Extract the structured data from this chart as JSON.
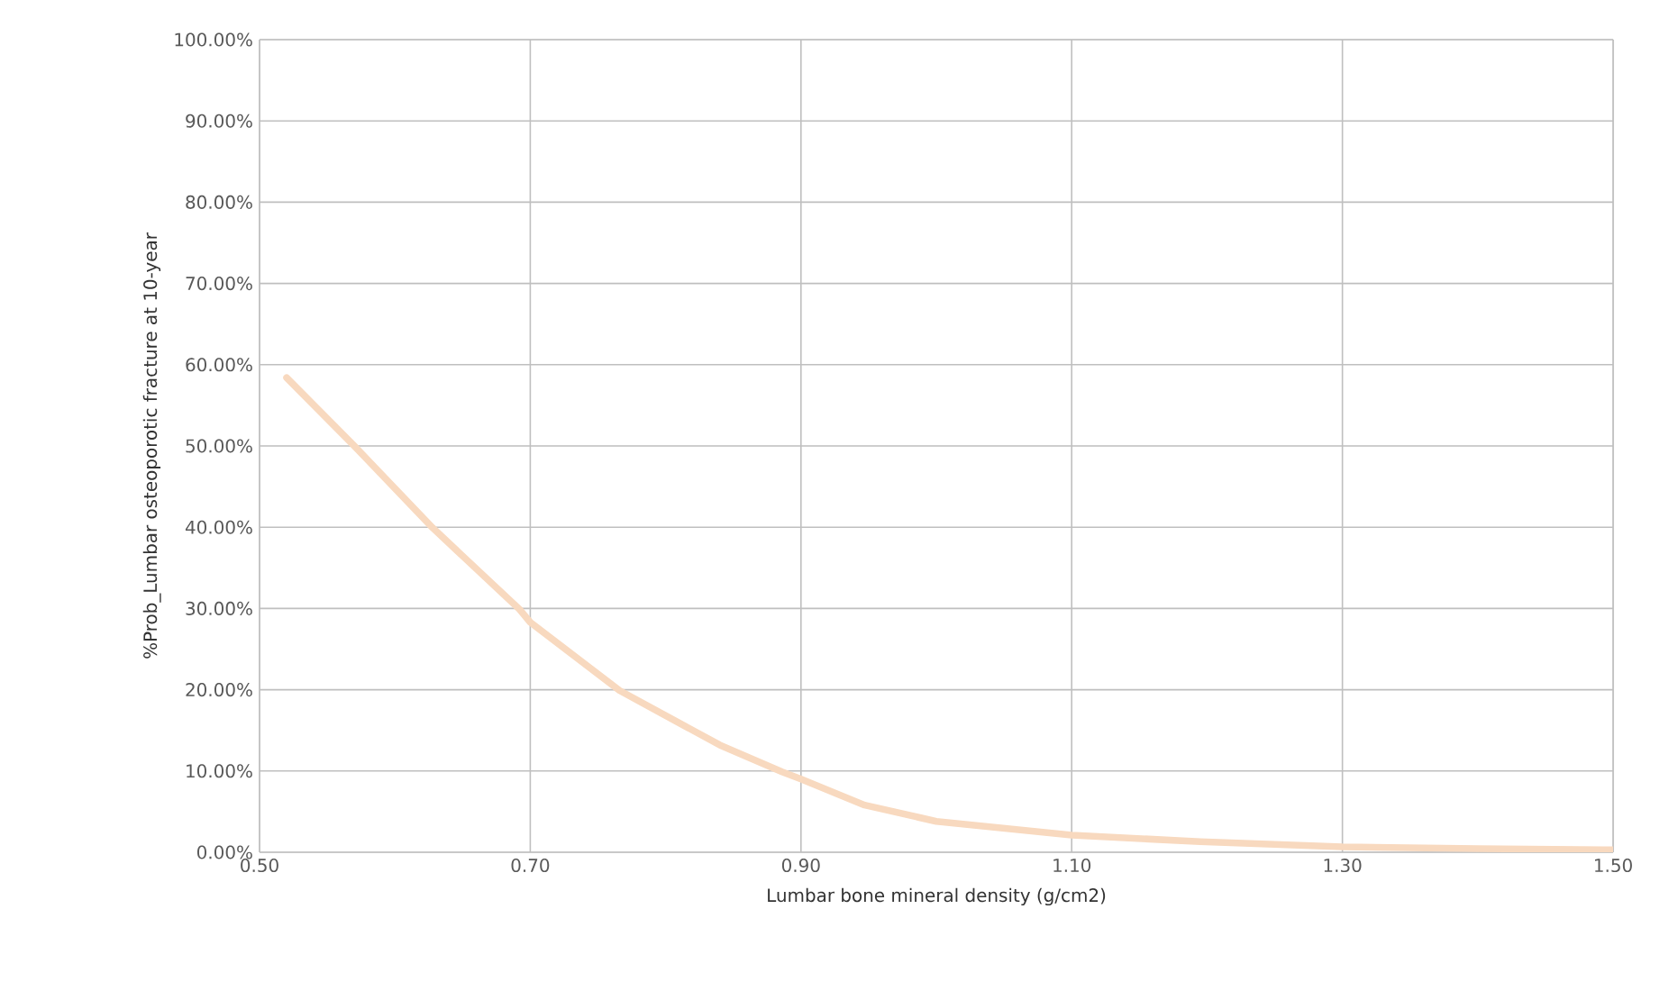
{
  "chart_data": {
    "type": "line",
    "xlabel": "Lumbar bone mineral density (g/cm2)",
    "ylabel": "%Prob_Lumbar osteoporotic fracture at 10-year",
    "x": [
      0.52,
      0.57,
      0.628,
      0.692,
      0.7,
      0.766,
      0.84,
      0.886,
      0.9,
      0.947,
      1.0,
      1.1,
      1.195,
      1.3,
      1.4,
      1.5
    ],
    "series": [
      {
        "color": "#f8d9bf",
        "values": [
          58.4,
          50.0,
          39.9,
          29.9,
          28.3,
          19.9,
          13.2,
          9.9,
          9.0,
          5.8,
          3.8,
          2.1,
          1.3,
          0.66,
          0.45,
          0.3
        ]
      }
    ],
    "xlim": [
      0.5,
      1.5
    ],
    "xticks": [
      {
        "value": 0.5,
        "label": "0.50"
      },
      {
        "value": 0.7,
        "label": "0.70"
      },
      {
        "value": 0.9,
        "label": "0.90"
      },
      {
        "value": 1.1,
        "label": "1.10"
      },
      {
        "value": 1.3,
        "label": "1.30"
      },
      {
        "value": 1.5,
        "label": "1.50"
      }
    ],
    "ylim": [
      0,
      100
    ],
    "yticks": [
      {
        "value": 0,
        "label": "0.00%"
      },
      {
        "value": 10,
        "label": "10.00%"
      },
      {
        "value": 20,
        "label": "20.00%"
      },
      {
        "value": 30,
        "label": "30.00%"
      },
      {
        "value": 40,
        "label": "40.00%"
      },
      {
        "value": 50,
        "label": "50.00%"
      },
      {
        "value": 60,
        "label": "60.00%"
      },
      {
        "value": 70,
        "label": "70.00%"
      },
      {
        "value": 80,
        "label": "80.00%"
      },
      {
        "value": 90,
        "label": "90.00%"
      },
      {
        "value": 100,
        "label": "100.00%"
      }
    ],
    "grid": true
  }
}
